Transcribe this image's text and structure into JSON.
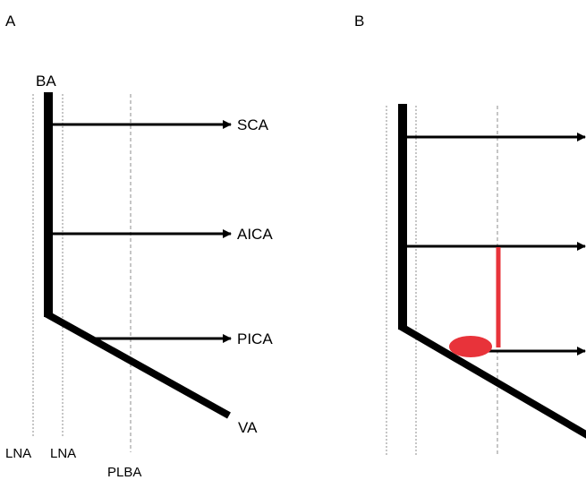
{
  "panels": [
    {
      "letter": "A",
      "labels": {
        "trunk": "BA",
        "branch_1": "SCA",
        "branch_2": "AICA",
        "branch_3": "PICA",
        "descending": "VA",
        "line_1": "LNA",
        "line_2": "LNA",
        "line_3": "PLBA"
      }
    },
    {
      "letter": "B"
    }
  ],
  "colors": {
    "vessel": "#000000",
    "reference_line": "#8c8c8c",
    "highlight": "#e8333a"
  }
}
